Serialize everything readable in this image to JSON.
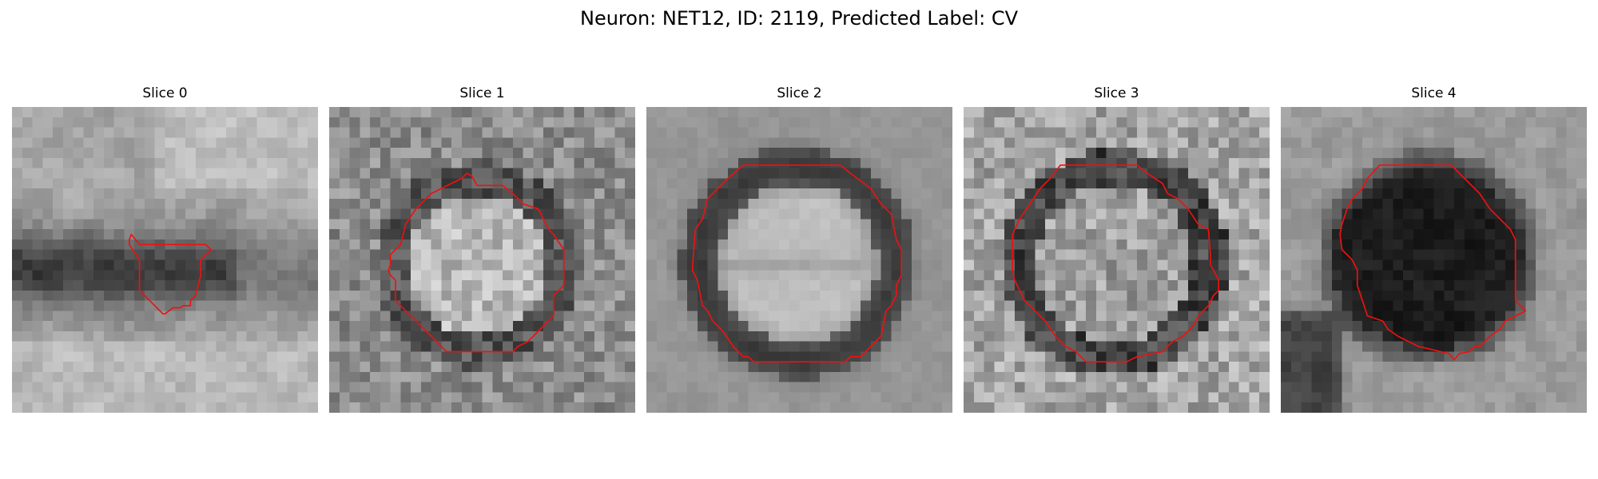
{
  "figure": {
    "title": "Neuron: NET12, ID: 2119, Predicted Label: CV"
  },
  "colors": {
    "contour": "#ee1111",
    "background": "#ffffff"
  },
  "panels": [
    {
      "title": "Slice 0"
    },
    {
      "title": "Slice 1"
    },
    {
      "title": "Slice 2"
    },
    {
      "title": "Slice 3"
    },
    {
      "title": "Slice 4"
    }
  ]
}
